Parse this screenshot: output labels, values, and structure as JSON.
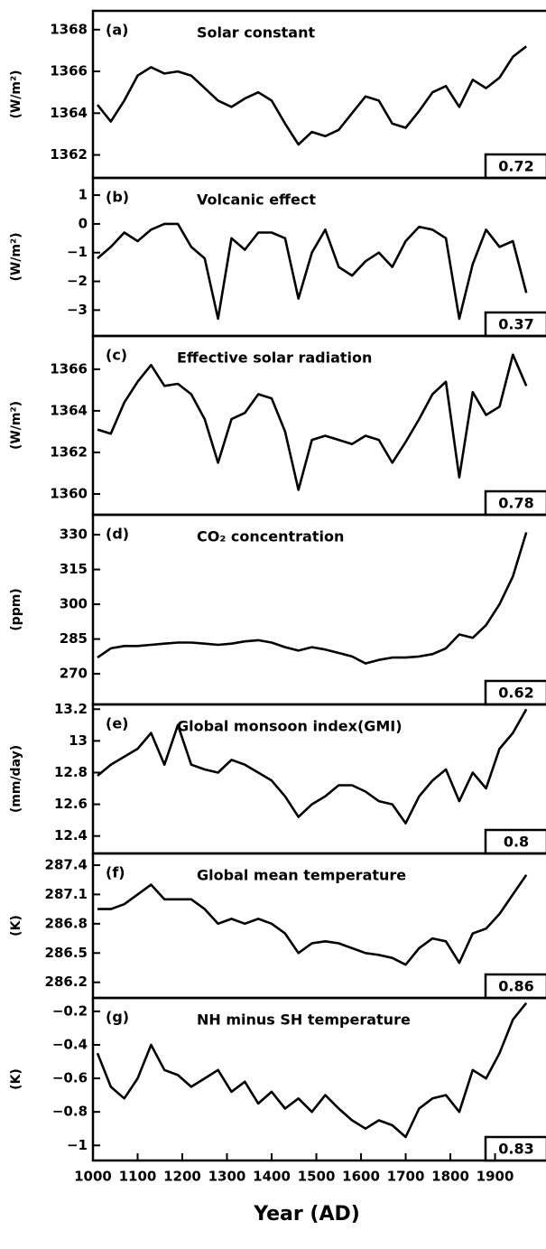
{
  "chart_data": [
    {
      "type": "line",
      "panel": "(a)",
      "title": "Solar constant",
      "ylabel": "(W/m²)",
      "correlation": 0.72,
      "x": [
        1010,
        1040,
        1070,
        1100,
        1130,
        1160,
        1190,
        1220,
        1250,
        1280,
        1310,
        1340,
        1370,
        1400,
        1430,
        1460,
        1490,
        1520,
        1550,
        1580,
        1610,
        1640,
        1670,
        1700,
        1730,
        1760,
        1790,
        1820,
        1850,
        1880,
        1910,
        1940,
        1970
      ],
      "values": [
        1364.4,
        1363.6,
        1364.6,
        1365.8,
        1366.2,
        1365.9,
        1366.0,
        1365.8,
        1365.2,
        1364.6,
        1364.3,
        1364.7,
        1365.0,
        1364.6,
        1363.5,
        1362.5,
        1363.1,
        1362.9,
        1363.2,
        1364.0,
        1364.8,
        1364.6,
        1363.5,
        1363.3,
        1364.1,
        1365.0,
        1365.3,
        1364.3,
        1365.6,
        1365.2,
        1365.7,
        1366.7,
        1367.2
      ],
      "color": "#000000",
      "xlim": [
        1000,
        2010
      ],
      "ylim": [
        1360.9,
        1368.9
      ],
      "yticks": [
        1362,
        1364,
        1366,
        1368
      ]
    },
    {
      "type": "line",
      "panel": "(b)",
      "title": "Volcanic effect",
      "ylabel": "(W/m²)",
      "correlation": 0.37,
      "x": [
        1010,
        1040,
        1070,
        1100,
        1130,
        1160,
        1190,
        1220,
        1250,
        1280,
        1310,
        1340,
        1370,
        1400,
        1430,
        1460,
        1490,
        1520,
        1550,
        1580,
        1610,
        1640,
        1670,
        1700,
        1730,
        1760,
        1790,
        1820,
        1850,
        1880,
        1910,
        1940,
        1970
      ],
      "values": [
        -1.2,
        -0.8,
        -0.3,
        -0.6,
        -0.2,
        0.0,
        0.0,
        -0.8,
        -1.2,
        -3.3,
        -0.5,
        -0.9,
        -0.3,
        -0.3,
        -0.5,
        -2.6,
        -1.0,
        -0.2,
        -1.5,
        -1.8,
        -1.3,
        -1.0,
        -1.5,
        -0.6,
        -0.1,
        -0.2,
        -0.5,
        -3.3,
        -1.4,
        -0.2,
        -0.8,
        -0.6,
        -2.4
      ],
      "color": "#000000",
      "xlim": [
        1000,
        2010
      ],
      "ylim": [
        -3.9,
        1.6
      ],
      "yticks": [
        {
          "value": -3,
          "label": "−3"
        },
        {
          "value": -2,
          "label": "−2"
        },
        {
          "value": -1,
          "label": "−1"
        },
        0,
        1
      ]
    },
    {
      "type": "line",
      "panel": "(c)",
      "title": "Effective solar radiation",
      "ylabel": "(W/m²)",
      "correlation": 0.78,
      "x": [
        1010,
        1040,
        1070,
        1100,
        1130,
        1160,
        1190,
        1220,
        1250,
        1280,
        1310,
        1340,
        1370,
        1400,
        1430,
        1460,
        1490,
        1520,
        1550,
        1580,
        1610,
        1640,
        1670,
        1700,
        1730,
        1760,
        1790,
        1820,
        1850,
        1880,
        1910,
        1940,
        1970
      ],
      "values": [
        1363.1,
        1362.9,
        1364.4,
        1365.4,
        1366.2,
        1365.2,
        1365.3,
        1364.8,
        1363.6,
        1361.5,
        1363.6,
        1363.9,
        1364.8,
        1364.6,
        1363.0,
        1360.2,
        1362.6,
        1362.8,
        1362.6,
        1362.4,
        1362.8,
        1362.6,
        1361.5,
        1362.5,
        1363.6,
        1364.8,
        1365.4,
        1360.8,
        1364.9,
        1363.8,
        1364.2,
        1366.7,
        1365.2
      ],
      "color": "#000000",
      "xlim": [
        1000,
        2010
      ],
      "ylim": [
        1359,
        1367.6
      ],
      "yticks": [
        1360,
        1362,
        1364,
        1366
      ]
    },
    {
      "type": "line",
      "panel": "(d)",
      "title": "CO₂ concentration",
      "ylabel": "(ppm)",
      "correlation": 0.62,
      "x": [
        1010,
        1040,
        1070,
        1100,
        1130,
        1160,
        1190,
        1220,
        1250,
        1280,
        1310,
        1340,
        1370,
        1400,
        1430,
        1460,
        1490,
        1520,
        1550,
        1580,
        1610,
        1640,
        1670,
        1700,
        1730,
        1760,
        1790,
        1820,
        1850,
        1880,
        1910,
        1940,
        1970
      ],
      "values": [
        277,
        281,
        282,
        282,
        282.5,
        283,
        283.5,
        283.5,
        283,
        282.5,
        283,
        284,
        284.5,
        283.5,
        281.5,
        280,
        281.5,
        280.5,
        279,
        277.5,
        274.5,
        276,
        277,
        277,
        277.5,
        278.5,
        281,
        287,
        285.5,
        291,
        300,
        312,
        331
      ],
      "color": "#000000",
      "xlim": [
        1000,
        2010
      ],
      "ylim": [
        256.8,
        338.6
      ],
      "yticks": [
        270,
        285,
        300,
        315,
        330
      ]
    },
    {
      "type": "line",
      "panel": "(e)",
      "title": "Global monsoon index(GMI)",
      "ylabel": "(mm/day)",
      "correlation": 0.8,
      "x": [
        1010,
        1040,
        1070,
        1100,
        1130,
        1160,
        1190,
        1220,
        1250,
        1280,
        1310,
        1340,
        1370,
        1400,
        1430,
        1460,
        1490,
        1520,
        1550,
        1580,
        1610,
        1640,
        1670,
        1700,
        1730,
        1760,
        1790,
        1820,
        1850,
        1880,
        1910,
        1940,
        1970
      ],
      "values": [
        12.78,
        12.85,
        12.9,
        12.95,
        13.05,
        12.85,
        13.1,
        12.85,
        12.82,
        12.8,
        12.88,
        12.85,
        12.8,
        12.75,
        12.65,
        12.52,
        12.6,
        12.65,
        12.72,
        12.72,
        12.68,
        12.62,
        12.6,
        12.48,
        12.65,
        12.75,
        12.82,
        12.62,
        12.8,
        12.7,
        12.95,
        13.05,
        13.2
      ],
      "color": "#000000",
      "xlim": [
        1000,
        2010
      ],
      "ylim": [
        12.29,
        13.23
      ],
      "yticks": [
        12.4,
        12.6,
        12.8,
        13,
        13.2
      ]
    },
    {
      "type": "line",
      "panel": "(f)",
      "title": "Global mean temperature",
      "ylabel": "(K)",
      "correlation": 0.86,
      "x": [
        1010,
        1040,
        1070,
        1100,
        1130,
        1160,
        1190,
        1220,
        1250,
        1280,
        1310,
        1340,
        1370,
        1400,
        1430,
        1460,
        1490,
        1520,
        1550,
        1580,
        1610,
        1640,
        1670,
        1700,
        1730,
        1760,
        1790,
        1820,
        1850,
        1880,
        1910,
        1940,
        1970
      ],
      "values": [
        286.95,
        286.95,
        287.0,
        287.1,
        287.2,
        287.05,
        287.05,
        287.05,
        286.95,
        286.8,
        286.85,
        286.8,
        286.85,
        286.8,
        286.7,
        286.5,
        286.6,
        286.62,
        286.6,
        286.55,
        286.5,
        286.48,
        286.45,
        286.38,
        286.55,
        286.65,
        286.62,
        286.4,
        286.7,
        286.75,
        286.9,
        287.1,
        287.3
      ],
      "color": "#000000",
      "xlim": [
        1000,
        2010
      ],
      "ylim": [
        286.04,
        287.52
      ],
      "yticks": [
        286.2,
        286.5,
        286.8,
        287.1,
        287.4
      ]
    },
    {
      "type": "line",
      "panel": "(g)",
      "title": "NH minus SH temperature",
      "ylabel": "(K)",
      "correlation": 0.83,
      "x": [
        1010,
        1040,
        1070,
        1100,
        1130,
        1160,
        1190,
        1220,
        1250,
        1280,
        1310,
        1340,
        1370,
        1400,
        1430,
        1460,
        1490,
        1520,
        1550,
        1580,
        1610,
        1640,
        1670,
        1700,
        1730,
        1760,
        1790,
        1820,
        1850,
        1880,
        1910,
        1940,
        1970
      ],
      "values": [
        -0.45,
        -0.65,
        -0.72,
        -0.6,
        -0.4,
        -0.55,
        -0.58,
        -0.65,
        -0.6,
        -0.55,
        -0.68,
        -0.62,
        -0.75,
        -0.68,
        -0.78,
        -0.72,
        -0.8,
        -0.7,
        -0.78,
        -0.85,
        -0.9,
        -0.85,
        -0.88,
        -0.95,
        -0.78,
        -0.72,
        -0.7,
        -0.8,
        -0.55,
        -0.6,
        -0.45,
        -0.25,
        -0.15
      ],
      "color": "#000000",
      "xlim": [
        1000,
        2010
      ],
      "ylim": [
        -1.09,
        -0.12
      ],
      "yticks": [
        {
          "value": -1,
          "label": "−1"
        },
        {
          "value": -0.8,
          "label": "−0.8"
        },
        {
          "value": -0.6,
          "label": "−0.6"
        },
        {
          "value": -0.4,
          "label": "−0.4"
        },
        {
          "value": -0.2,
          "label": "−0.2"
        }
      ],
      "xticks": [
        1000,
        1100,
        1200,
        1300,
        1400,
        1500,
        1600,
        1700,
        1800,
        1900
      ],
      "xlabel": "Year (AD)"
    }
  ]
}
